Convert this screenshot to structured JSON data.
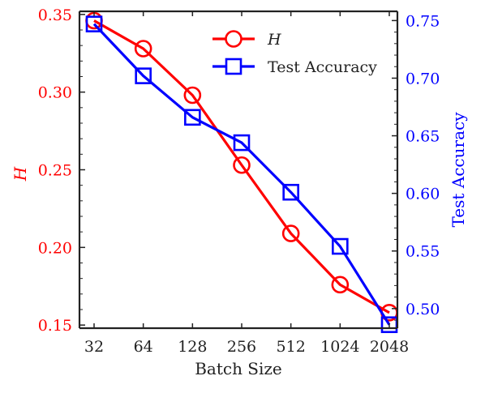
{
  "chart_data": {
    "type": "line",
    "xlabel": "Batch Size",
    "ylabel_left": "H",
    "ylabel_right": "Test Accuracy",
    "categories": [
      "32",
      "64",
      "128",
      "256",
      "512",
      "1024",
      "2048"
    ],
    "y_left_ticks": [
      "0.15",
      "0.20",
      "0.25",
      "0.30",
      "0.35"
    ],
    "y_right_ticks": [
      "0.50",
      "0.55",
      "0.60",
      "0.65",
      "0.70",
      "0.75"
    ],
    "y_left_range": [
      0.148,
      0.352
    ],
    "y_right_range": [
      0.483,
      0.758
    ],
    "series": [
      {
        "name": "H",
        "axis": "left",
        "marker": "circle",
        "color": "#ff0000",
        "values": [
          0.346,
          0.328,
          0.298,
          0.253,
          0.209,
          0.176,
          0.158
        ]
      },
      {
        "name": "Test Accuracy",
        "axis": "right",
        "marker": "square",
        "color": "#0000ff",
        "values": [
          0.747,
          0.702,
          0.666,
          0.644,
          0.601,
          0.554,
          0.486
        ]
      }
    ],
    "legend": {
      "placement": "top-center"
    },
    "grid": false
  }
}
